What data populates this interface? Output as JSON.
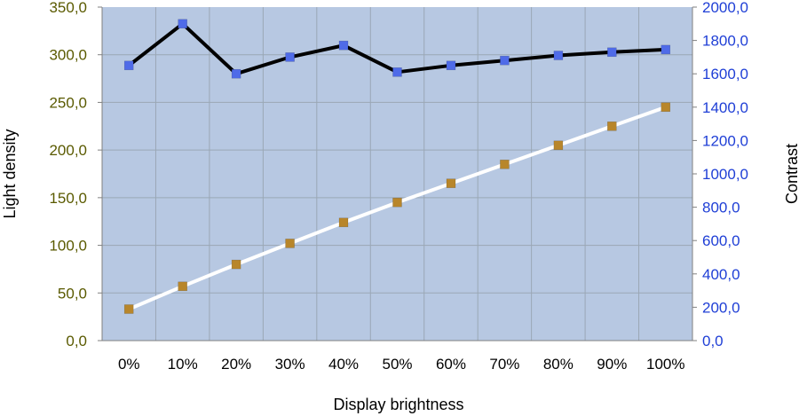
{
  "chart_data": {
    "type": "line",
    "categories": [
      "0%",
      "10%",
      "20%",
      "30%",
      "40%",
      "50%",
      "60%",
      "70%",
      "80%",
      "90%",
      "100%"
    ],
    "xlabel": "Display brightness",
    "ylabel_left": "Light density",
    "ylabel_right": "Contrast",
    "ylim_left": [
      0,
      350
    ],
    "ylim_right": [
      0,
      2000
    ],
    "yticks_left": [
      "0,0",
      "50,0",
      "100,0",
      "150,0",
      "200,0",
      "250,0",
      "300,0",
      "350,0"
    ],
    "yticks_right": [
      "0,0",
      "200,0",
      "400,0",
      "600,0",
      "800,0",
      "1000,0",
      "1200,0",
      "1400,0",
      "1600,0",
      "1800,0",
      "2000,0"
    ],
    "grid": true,
    "series": [
      {
        "axis": "left",
        "values": [
          33,
          57,
          80,
          102,
          124,
          145,
          165,
          185,
          205,
          225,
          245
        ],
        "line_color": "#ffffff",
        "marker_color": "#b8862b"
      },
      {
        "axis": "right",
        "values": [
          1650,
          1900,
          1600,
          1700,
          1770,
          1610,
          1650,
          1680,
          1710,
          1730,
          1745
        ],
        "line_color": "#000000",
        "marker_color": "#4f6be8"
      }
    ],
    "colors": {
      "plot_background": "#b7c8e2",
      "grid": "#9aa7b5",
      "left_axis_text": "#5a5a00",
      "right_axis_text": "#1f3fd6"
    }
  }
}
